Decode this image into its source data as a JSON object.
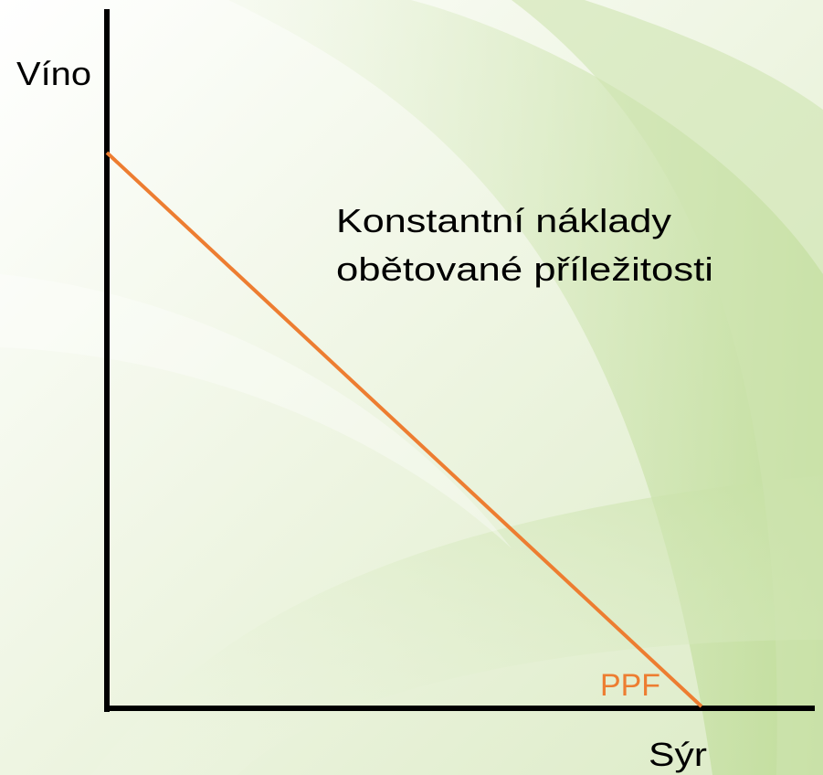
{
  "diagram": {
    "y_axis_label": "Víno",
    "x_axis_label": "Sýr",
    "annotation": [
      "Konstantní náklady",
      "obětované příležitosti"
    ],
    "curve_label": "PPF"
  }
}
